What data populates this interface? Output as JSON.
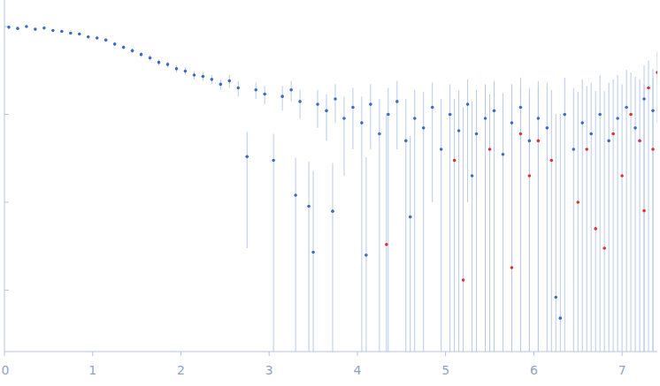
{
  "chart_data": {
    "type": "scatter",
    "log": "y",
    "tick_labels": "x",
    "grid": false,
    "xlim": [
      0,
      7.4
    ],
    "ylim": [
      0.0002,
      2
    ],
    "xticks": [
      0,
      1,
      2,
      3,
      4,
      5,
      6,
      7
    ],
    "yticks": [
      0.001,
      0.01,
      0.1,
      1
    ],
    "series": [
      {
        "color": "#3b6cc4",
        "marker": "circle",
        "x": [
          0.05,
          0.15,
          0.25,
          0.35,
          0.45,
          0.55,
          0.65,
          0.75,
          0.85,
          0.95,
          1.05,
          1.15,
          1.25,
          1.35,
          1.45,
          1.55,
          1.65,
          1.75,
          1.85,
          1.95,
          2.05,
          2.15,
          2.25,
          2.35,
          2.45,
          2.55,
          2.65,
          2.75,
          2.85,
          2.95,
          3.05,
          3.15,
          3.25,
          3.3,
          3.35,
          3.45,
          3.5,
          3.55,
          3.65,
          3.72,
          3.75,
          3.85,
          3.95,
          4.05,
          4.1,
          4.15,
          4.25,
          4.35,
          4.45,
          4.55,
          4.6,
          4.65,
          4.75,
          4.85,
          4.95,
          5.05,
          5.15,
          5.25,
          5.3,
          5.35,
          5.45,
          5.55,
          5.65,
          5.75,
          5.85,
          5.95,
          6.05,
          6.15,
          6.25,
          6.3,
          6.35,
          6.45,
          6.55,
          6.65,
          6.75,
          6.85,
          6.95,
          7.05,
          7.15,
          7.25,
          7.35
        ],
        "values": [
          0.98,
          0.95,
          1.0,
          0.93,
          0.96,
          0.9,
          0.88,
          0.84,
          0.82,
          0.76,
          0.74,
          0.7,
          0.63,
          0.58,
          0.53,
          0.48,
          0.44,
          0.39,
          0.37,
          0.33,
          0.31,
          0.28,
          0.27,
          0.25,
          0.22,
          0.24,
          0.2,
          0.033,
          0.19,
          0.17,
          0.03,
          0.16,
          0.19,
          0.012,
          0.14,
          0.009,
          0.0027,
          0.13,
          0.11,
          0.0079,
          0.15,
          0.09,
          0.12,
          0.08,
          0.0025,
          0.13,
          0.06,
          0.1,
          0.14,
          0.05,
          0.0068,
          0.09,
          0.07,
          0.12,
          0.04,
          0.1,
          0.065,
          0.13,
          0.02,
          0.06,
          0.09,
          0.11,
          0.035,
          0.08,
          0.12,
          0.05,
          0.09,
          0.07,
          0.00083,
          0.00048,
          0.1,
          0.04,
          0.08,
          0.06,
          0.1,
          0.05,
          0.09,
          0.12,
          0.07,
          0.15,
          0.11
        ],
        "errors": [
          0.03,
          0.03,
          0.03,
          0.03,
          0.03,
          0.03,
          0.03,
          0.03,
          0.03,
          0.03,
          0.03,
          0.03,
          0.03,
          0.03,
          0.03,
          0.03,
          0.03,
          0.03,
          0.03,
          0.03,
          0.03,
          0.03,
          0.03,
          0.03,
          0.03,
          0.04,
          0.04,
          0.03,
          0.04,
          0.04,
          0.03,
          0.05,
          0.05,
          0.02,
          0.05,
          0.02,
          0.02,
          0.06,
          0.06,
          0.02,
          0.07,
          0.07,
          0.08,
          0.08,
          0.03,
          0.09,
          0.09,
          0.1,
          0.1,
          0.1,
          0.05,
          0.1,
          0.11,
          0.11,
          0.11,
          0.12,
          0.12,
          0.12,
          0.12,
          0.13,
          0.13,
          0.13,
          0.14,
          0.14,
          0.14,
          0.15,
          0.15,
          0.16,
          0.1,
          0.1,
          0.16,
          0.16,
          0.17,
          0.17,
          0.18,
          0.18,
          0.19,
          0.2,
          0.2,
          0.21,
          0.22
        ]
      },
      {
        "color": "#e0302d",
        "marker": "circle",
        "x": [
          4.33,
          5.1,
          5.2,
          5.5,
          5.75,
          5.85,
          5.95,
          6.05,
          6.2,
          6.5,
          6.6,
          6.7,
          6.8,
          6.9,
          7.0,
          7.1,
          7.2,
          7.25,
          7.3,
          7.35,
          7.4
        ],
        "values": [
          0.0033,
          0.03,
          0.0013,
          0.04,
          0.0018,
          0.06,
          0.02,
          0.05,
          0.03,
          0.01,
          0.04,
          0.005,
          0.003,
          0.06,
          0.02,
          0.1,
          0.05,
          0.008,
          0.2,
          0.04,
          0.3
        ],
        "errors": [
          0.1,
          0.12,
          0.12,
          0.13,
          0.14,
          0.14,
          0.15,
          0.15,
          0.16,
          0.17,
          0.17,
          0.18,
          0.18,
          0.19,
          0.2,
          0.2,
          0.2,
          0.21,
          0.21,
          0.22,
          0.22
        ]
      }
    ]
  }
}
